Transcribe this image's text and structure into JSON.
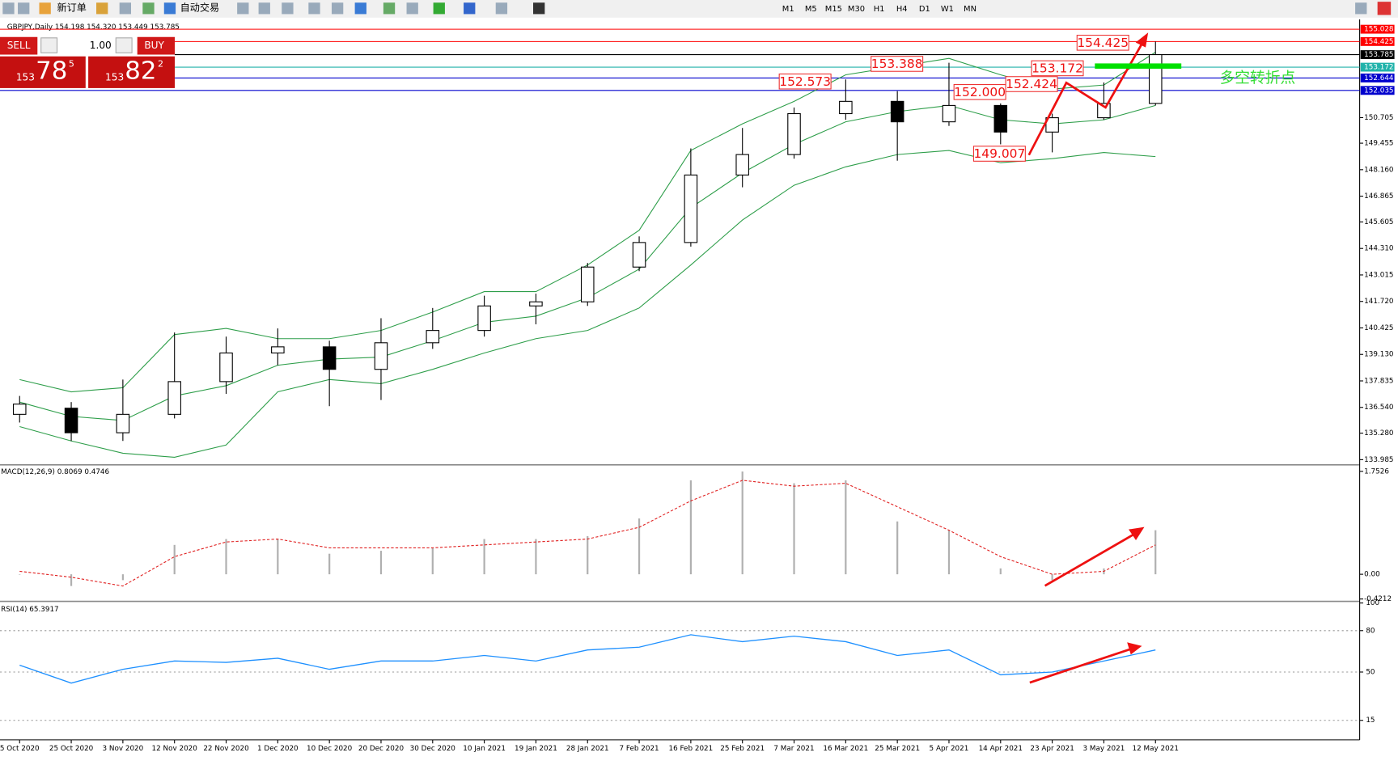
{
  "toolbar": {
    "new_order": "新订单",
    "auto_trading": "自动交易",
    "timeframes": [
      "M1",
      "M5",
      "M15",
      "M30",
      "H1",
      "H4",
      "D1",
      "W1",
      "MN"
    ]
  },
  "one_click": {
    "sell": "SELL",
    "buy": "BUY",
    "lots": "1.00",
    "sell_price": {
      "big": "153",
      "main": "78",
      "sup": "5"
    },
    "buy_price": {
      "big": "153",
      "main": "82",
      "sup": "2"
    }
  },
  "chart_data": [
    {
      "type": "candlestick",
      "title": "GBPJPY,Daily  154.198 154.320 153.449 153.785",
      "categories": [
        "5 Oct 2020",
        "25 Oct 2020",
        "3 Nov 2020",
        "12 Nov 2020",
        "22 Nov 2020",
        "1 Dec 2020",
        "10 Dec 2020",
        "20 Dec 2020",
        "30 Dec 2020",
        "10 Jan 2021",
        "19 Jan 2021",
        "28 Jan 2021",
        "7 Feb 2021",
        "16 Feb 2021",
        "25 Feb 2021",
        "7 Mar 2021",
        "16 Mar 2021",
        "25 Mar 2021",
        "5 Apr 2021",
        "14 Apr 2021",
        "23 Apr 2021",
        "3 May 2021",
        "12 May 2021"
      ],
      "open": [
        136.2,
        136.5,
        135.3,
        136.2,
        137.8,
        139.2,
        139.5,
        138.4,
        139.7,
        140.3,
        141.5,
        141.7,
        143.4,
        144.6,
        147.9,
        148.9,
        150.9,
        151.5,
        150.5,
        151.3,
        150.0,
        150.7,
        151.4
      ],
      "high": [
        137.1,
        136.8,
        137.9,
        140.2,
        140.0,
        140.4,
        139.8,
        140.9,
        141.4,
        142.0,
        142.1,
        143.6,
        144.9,
        149.2,
        150.2,
        151.2,
        152.573,
        152.0,
        153.388,
        151.4,
        150.9,
        152.424,
        154.425
      ],
      "low": [
        135.8,
        134.9,
        134.9,
        136.0,
        137.2,
        138.6,
        136.6,
        136.9,
        139.4,
        140.0,
        140.6,
        141.5,
        143.2,
        144.4,
        147.3,
        148.7,
        150.6,
        148.6,
        150.3,
        149.4,
        149.007,
        150.6,
        151.3
      ],
      "close": [
        136.7,
        135.3,
        136.2,
        137.8,
        139.2,
        139.5,
        138.4,
        139.7,
        140.3,
        141.5,
        141.7,
        143.4,
        144.6,
        147.9,
        148.9,
        150.9,
        151.5,
        150.5,
        151.3,
        150.0,
        150.7,
        151.4,
        153.785
      ],
      "bollinger": {
        "color": "#2e9e4a",
        "upper": [
          137.9,
          137.3,
          137.5,
          140.1,
          140.4,
          139.9,
          139.9,
          140.3,
          141.2,
          142.2,
          142.2,
          143.5,
          145.2,
          149.1,
          150.4,
          151.5,
          152.8,
          153.2,
          153.6,
          152.8,
          152.1,
          152.3,
          153.9
        ],
        "middle": [
          136.8,
          136.1,
          135.9,
          137.1,
          137.6,
          138.6,
          138.9,
          139.0,
          139.8,
          140.7,
          141.0,
          141.9,
          143.3,
          146.3,
          148.0,
          149.4,
          150.5,
          151.0,
          151.3,
          150.6,
          150.4,
          150.6,
          151.3
        ],
        "lower": [
          135.6,
          134.9,
          134.3,
          134.1,
          134.7,
          137.3,
          137.9,
          137.7,
          138.4,
          139.2,
          139.9,
          140.3,
          141.4,
          143.5,
          145.7,
          147.4,
          148.3,
          148.9,
          149.1,
          148.5,
          148.7,
          149.0,
          148.8
        ]
      },
      "levels": [
        {
          "value": 155.028,
          "color": "#ff0000"
        },
        {
          "value": 154.425,
          "color": "#ff0000"
        },
        {
          "value": 153.785,
          "color": "#000000"
        },
        {
          "value": 153.172,
          "color": "#20b2aa"
        },
        {
          "value": 152.644,
          "color": "#0000cd"
        },
        {
          "value": 152.035,
          "color": "#0000cd"
        }
      ],
      "price_labels": [
        153.388,
        152.573,
        152.0,
        152.424,
        153.172,
        154.425,
        149.007
      ],
      "price_label_texts": [
        "153.388",
        "152.573",
        "152.000",
        "152.424",
        "153.172",
        "154.425",
        "149.007"
      ],
      "annotation": "多空转折点",
      "ylim": [
        133.85,
        155.25
      ],
      "yticks": [
        133.985,
        {
          "value": 135.28,
          "label": "135.280"
        },
        {
          "value": 136.54,
          "label": "136.540"
        },
        137.835,
        {
          "value": 139.13,
          "label": "139.130"
        },
        140.425,
        {
          "value": 141.72,
          "label": "141.720"
        },
        143.015,
        {
          "value": 144.31,
          "label": "144.310"
        },
        145.605,
        146.865,
        {
          "value": 148.16,
          "label": "148.160"
        },
        149.455,
        150.705
      ]
    },
    {
      "type": "macd",
      "title": "MACD(12,26,9) 0.8069 0.4746",
      "values": [
        0.0,
        -0.2,
        -0.1,
        0.5,
        0.6,
        0.6,
        0.35,
        0.4,
        0.45,
        0.6,
        0.6,
        0.65,
        0.95,
        1.6,
        1.75,
        1.55,
        1.6,
        0.9,
        0.75,
        0.1,
        -0.1,
        0.1,
        0.75
      ],
      "signal": [
        0.05,
        -0.05,
        -0.2,
        0.3,
        0.55,
        0.6,
        0.45,
        0.45,
        0.45,
        0.5,
        0.55,
        0.6,
        0.8,
        1.25,
        1.6,
        1.5,
        1.55,
        1.15,
        0.75,
        0.3,
        0.0,
        0.05,
        0.5
      ],
      "ylim": [
        -0.45,
        1.83
      ],
      "yticks": [
        1.7526,
        {
          "value": 0,
          "label": "0.00"
        },
        -0.4212
      ]
    },
    {
      "type": "rsi",
      "title": "RSI(14) 65.3917",
      "values": [
        55,
        42,
        52,
        58,
        57,
        60,
        52,
        58,
        58,
        62,
        58,
        66,
        68,
        77,
        72,
        76,
        72,
        62,
        66,
        48,
        50,
        58,
        66
      ],
      "ylim": [
        4.7,
        100.4
      ],
      "yticks": [
        15,
        50,
        80,
        100
      ]
    }
  ]
}
